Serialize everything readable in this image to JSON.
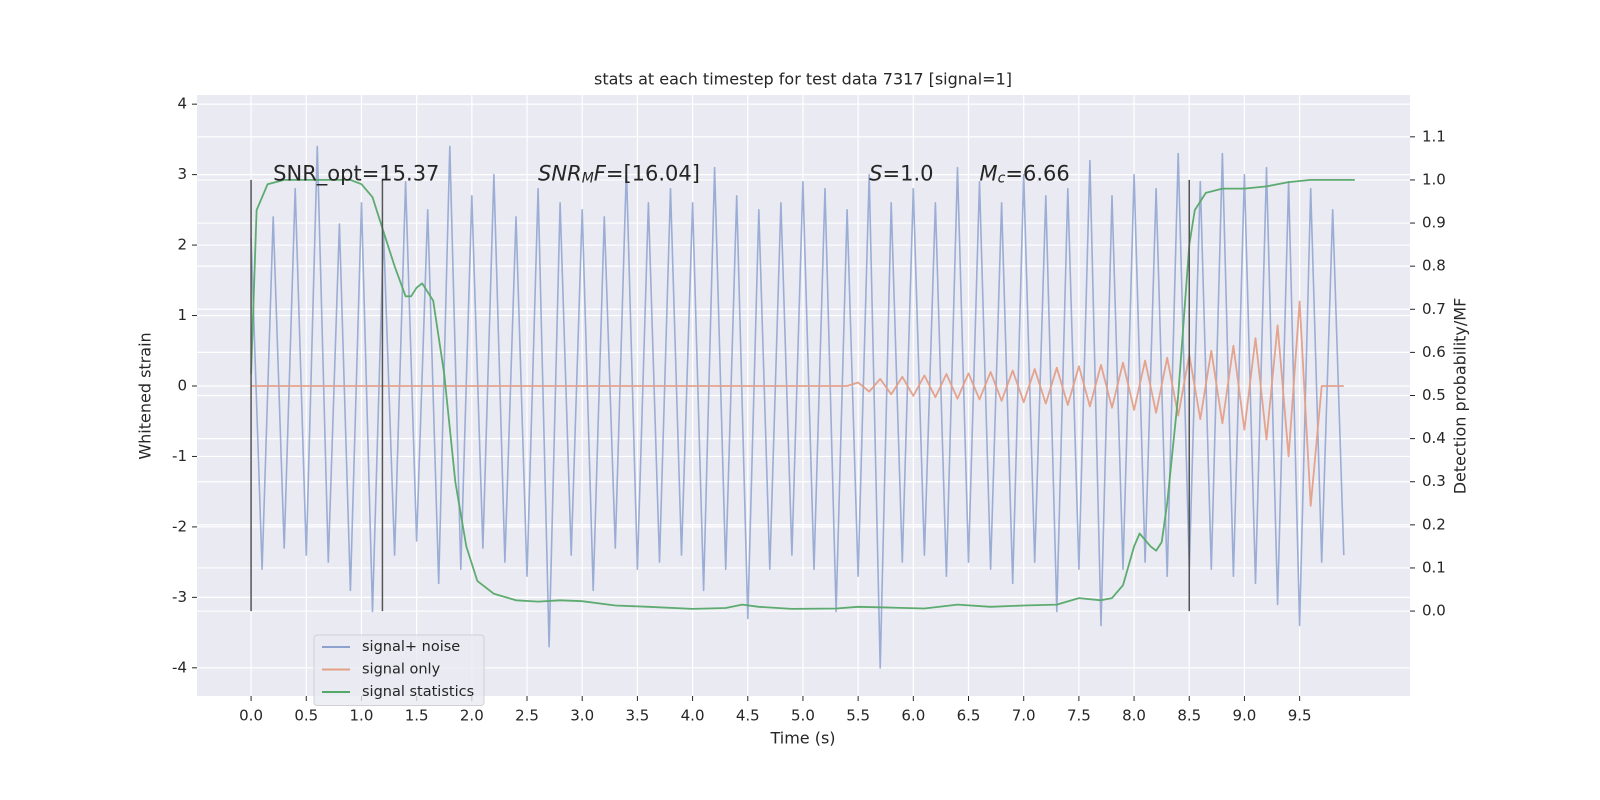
{
  "chart_data": {
    "type": "line",
    "title": "stats at each timestep for test data 7317 [signal=1]",
    "xlabel": "Time (s)",
    "ylabel": "Whitened strain",
    "y2label": "Detection probability/MF",
    "xlim": [
      -0.49,
      10.5
    ],
    "ylim": [
      -4.4,
      4.13
    ],
    "y2lim": [
      -0.197,
      1.197
    ],
    "xticks": [
      {
        "value": 0,
        "label": "0.0"
      },
      0.5,
      {
        "value": 1,
        "label": "1.0"
      },
      1.5,
      {
        "value": 2,
        "label": "2.0"
      },
      2.5,
      {
        "value": 3,
        "label": "3.0"
      },
      3.5,
      {
        "value": 4,
        "label": "4.0"
      },
      4.5,
      {
        "value": 5,
        "label": "5.0"
      },
      5.5,
      {
        "value": 6,
        "label": "6.0"
      },
      6.5,
      {
        "value": 7,
        "label": "7.0"
      },
      7.5,
      {
        "value": 8,
        "label": "8.0"
      },
      8.5,
      {
        "value": 9,
        "label": "9.0"
      },
      9.5
    ],
    "yticks": [
      -4,
      -3,
      -2,
      -1,
      0,
      1,
      2,
      3,
      4
    ],
    "y2ticks": [
      {
        "value": 0,
        "label": "0.0"
      },
      0.1,
      0.2,
      0.3,
      0.4,
      0.5,
      0.6,
      0.7,
      0.8,
      0.9,
      {
        "value": 1,
        "label": "1.0"
      },
      1.1
    ],
    "grid": true,
    "legend": "lower left",
    "series": [
      {
        "name": "signal+ noise",
        "color": "#8da2cf",
        "x": [
          0.0,
          0.1,
          0.2,
          0.3,
          0.4,
          0.5,
          0.6,
          0.7,
          0.8,
          0.9,
          1.0,
          1.1,
          1.2,
          1.3,
          1.4,
          1.5,
          1.6,
          1.7,
          1.8,
          1.9,
          2.0,
          2.1,
          2.2,
          2.3,
          2.4,
          2.5,
          2.6,
          2.7,
          2.8,
          2.9,
          3.0,
          3.1,
          3.2,
          3.3,
          3.4,
          3.5,
          3.6,
          3.7,
          3.8,
          3.9,
          4.0,
          4.1,
          4.2,
          4.3,
          4.4,
          4.5,
          4.6,
          4.7,
          4.8,
          4.9,
          5.0,
          5.1,
          5.2,
          5.3,
          5.4,
          5.5,
          5.6,
          5.7,
          5.8,
          5.9,
          6.0,
          6.1,
          6.2,
          6.3,
          6.4,
          6.5,
          6.6,
          6.7,
          6.8,
          6.9,
          7.0,
          7.1,
          7.2,
          7.3,
          7.4,
          7.5,
          7.6,
          7.7,
          7.8,
          7.9,
          8.0,
          8.1,
          8.2,
          8.3,
          8.4,
          8.5,
          8.6,
          8.7,
          8.8,
          8.9,
          9.0,
          9.1,
          9.2,
          9.3,
          9.4,
          9.5,
          9.6,
          9.7,
          9.8,
          9.9
        ],
        "values": [
          2.1,
          -2.6,
          2.4,
          -2.3,
          2.8,
          -2.4,
          3.4,
          -2.5,
          2.3,
          -2.9,
          2.6,
          -3.2,
          2.2,
          -2.4,
          2.9,
          -2.2,
          2.5,
          -2.8,
          3.4,
          -2.6,
          2.7,
          -2.3,
          3.0,
          -2.5,
          2.4,
          -2.7,
          2.8,
          -3.7,
          2.6,
          -2.4,
          2.5,
          -2.9,
          2.4,
          -2.3,
          3.1,
          -2.6,
          2.6,
          -2.5,
          2.8,
          -2.4,
          2.6,
          -2.9,
          3.1,
          -2.6,
          2.7,
          -3.3,
          2.5,
          -2.6,
          2.6,
          -2.4,
          2.9,
          -2.6,
          2.8,
          -3.2,
          2.5,
          -2.7,
          3.0,
          -4.0,
          2.6,
          -2.5,
          2.8,
          -2.4,
          2.6,
          -2.7,
          3.1,
          -2.5,
          2.9,
          -2.6,
          2.6,
          -2.8,
          3.0,
          -2.5,
          2.7,
          -3.2,
          2.8,
          -2.6,
          3.2,
          -3.4,
          2.7,
          -2.6,
          3.0,
          -2.5,
          2.8,
          -2.7,
          3.3,
          -2.6,
          2.9,
          -2.6,
          3.3,
          -2.7,
          3.0,
          -2.8,
          3.1,
          -3.1,
          2.9,
          -3.4,
          2.8,
          -2.5,
          2.5,
          -2.4
        ]
      },
      {
        "name": "signal only",
        "color": "#e39f88",
        "x": [
          0.0,
          0.1,
          0.2,
          0.3,
          0.4,
          0.5,
          0.6,
          0.7,
          0.8,
          0.9,
          1.0,
          1.1,
          1.2,
          1.3,
          1.4,
          1.5,
          1.6,
          1.7,
          1.8,
          1.9,
          2.0,
          2.1,
          2.2,
          2.3,
          2.4,
          2.5,
          2.6,
          2.7,
          2.8,
          2.9,
          3.0,
          3.1,
          3.2,
          3.3,
          3.4,
          3.5,
          3.6,
          3.7,
          3.8,
          3.9,
          4.0,
          4.1,
          4.2,
          4.3,
          4.4,
          4.5,
          4.6,
          4.7,
          4.8,
          4.9,
          5.0,
          5.1,
          5.2,
          5.3,
          5.4,
          5.5,
          5.6,
          5.7,
          5.8,
          5.9,
          6.0,
          6.1,
          6.2,
          6.3,
          6.4,
          6.5,
          6.6,
          6.7,
          6.8,
          6.9,
          7.0,
          7.1,
          7.2,
          7.3,
          7.4,
          7.5,
          7.6,
          7.7,
          7.8,
          7.9,
          8.0,
          8.1,
          8.2,
          8.3,
          8.4,
          8.5,
          8.6,
          8.7,
          8.8,
          8.9,
          9.0,
          9.1,
          9.2,
          9.3,
          9.4,
          9.5,
          9.6,
          9.7,
          9.8,
          9.9
        ],
        "values": [
          0,
          0,
          0,
          0,
          0,
          0,
          0,
          0,
          0,
          0,
          0,
          0,
          0,
          0,
          0,
          0,
          0,
          0,
          0,
          0,
          0,
          0,
          0,
          0,
          0,
          0,
          0,
          0,
          0,
          0,
          0,
          0,
          0,
          0,
          0,
          0,
          0,
          0,
          0,
          0,
          0,
          0,
          0,
          0,
          0,
          0,
          0,
          0,
          0,
          0,
          0,
          0,
          0,
          0,
          0,
          0.05,
          -0.08,
          0.1,
          -0.12,
          0.13,
          -0.14,
          0.15,
          -0.16,
          0.17,
          -0.18,
          0.18,
          -0.19,
          0.2,
          -0.21,
          0.22,
          -0.23,
          0.24,
          -0.25,
          0.26,
          -0.27,
          0.28,
          -0.29,
          0.3,
          -0.31,
          0.33,
          -0.34,
          0.36,
          -0.38,
          0.4,
          -0.42,
          0.44,
          -0.47,
          0.5,
          -0.53,
          0.57,
          -0.62,
          0.68,
          -0.76,
          0.86,
          -1.0,
          1.2,
          -1.7,
          0,
          0,
          0
        ]
      },
      {
        "name": "signal statistics",
        "color": "#55a868",
        "axis": "y2",
        "x": [
          0.0,
          0.05,
          0.15,
          0.3,
          0.9,
          1.0,
          1.1,
          1.2,
          1.3,
          1.4,
          1.45,
          1.5,
          1.55,
          1.65,
          1.75,
          1.85,
          1.95,
          2.05,
          2.2,
          2.4,
          2.6,
          2.8,
          3.0,
          3.3,
          3.6,
          4.0,
          4.3,
          4.45,
          4.6,
          4.9,
          5.3,
          5.5,
          5.8,
          6.1,
          6.4,
          6.7,
          7.0,
          7.3,
          7.5,
          7.7,
          7.8,
          7.9,
          8.0,
          8.05,
          8.15,
          8.2,
          8.25,
          8.3,
          8.4,
          8.5,
          8.55,
          8.65,
          8.8,
          9.0,
          9.2,
          9.4,
          9.6,
          10.0
        ],
        "values": [
          0.55,
          0.93,
          0.99,
          1.0,
          1.0,
          0.99,
          0.96,
          0.88,
          0.8,
          0.73,
          0.73,
          0.75,
          0.76,
          0.72,
          0.55,
          0.3,
          0.15,
          0.07,
          0.04,
          0.025,
          0.022,
          0.025,
          0.023,
          0.013,
          0.01,
          0.005,
          0.007,
          0.015,
          0.01,
          0.005,
          0.006,
          0.01,
          0.008,
          0.006,
          0.015,
          0.01,
          0.013,
          0.015,
          0.03,
          0.025,
          0.03,
          0.06,
          0.15,
          0.18,
          0.15,
          0.14,
          0.16,
          0.25,
          0.5,
          0.85,
          0.93,
          0.97,
          0.98,
          0.98,
          0.985,
          0.995,
          1.0,
          1.0
        ]
      }
    ],
    "vlines": {
      "x": [
        0,
        1.19,
        8.5
      ],
      "y2min": 0,
      "y2max": 1,
      "color": "#555555"
    },
    "annotations": [
      {
        "x": 0.2,
        "y": 3.0,
        "parts": [
          {
            "text": "SNR_opt=15.37"
          }
        ]
      },
      {
        "x": 2.6,
        "y": 3.0,
        "parts": [
          {
            "text": "SNR",
            "style": "italic"
          },
          {
            "text": "M",
            "style": "sub"
          },
          {
            "text": "F",
            "style": "italic"
          },
          {
            "text": "=[16.04]"
          }
        ]
      },
      {
        "x": 5.6,
        "y": 3.0,
        "parts": [
          {
            "text": "S",
            "style": "italic"
          },
          {
            "text": "=1.0"
          }
        ]
      },
      {
        "x": 6.6,
        "y": 3.0,
        "parts": [
          {
            "text": "M",
            "style": "italic"
          },
          {
            "text": "c",
            "style": "sub"
          },
          {
            "text": "=6.66"
          }
        ]
      }
    ]
  }
}
